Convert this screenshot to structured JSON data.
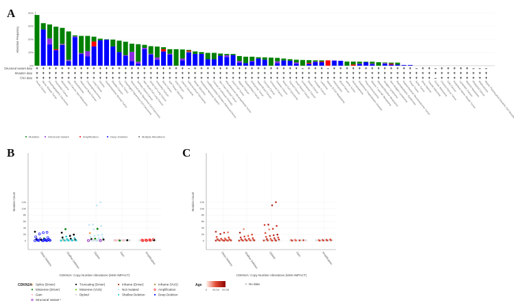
{
  "panels": {
    "a": "A",
    "b": "B",
    "c": "C"
  },
  "colors": {
    "mutation": "#008000",
    "structural_variant": "#8a2be2",
    "amplification": "#ff0000",
    "deep_deletion": "#0000ff",
    "multiple": "#666666"
  },
  "chart_data": [
    {
      "id": "A",
      "type": "bar",
      "stacked": true,
      "ylabel": "Alteration Frequency",
      "ylim": [
        0,
        40
      ],
      "yticks": [
        "0%",
        "10%",
        "20%",
        "30%",
        "40%"
      ],
      "row_labels": [
        "Structural variant data",
        "Mutation data",
        "CNA data"
      ],
      "legend": [
        "Mutation",
        "Structural Variant",
        "Amplification",
        "Deep Deletion",
        "Multiple Alterations"
      ],
      "legend_position": "bottom-left",
      "categories": [
        "Penile Cancer",
        "Nerve Sheath Tumor",
        "Esophagogastric Carcinoma",
        "Pancreatic Cancer",
        "Melanoma",
        "Skin Cancer, Non-Melanoma",
        "Mesothelioma",
        "Head and Neck Cancer",
        "Cholangiocarcinoma",
        "Lung Cancer",
        "Glioma",
        "Gastrointestinal Stromal Tumor",
        "Bladder Cancer",
        "Thymic Tumor",
        "Esophageal Squamous Cell Carcinoma",
        "Head and Neck Squamous Cell Carcinoma",
        "Salivary Gland Cancer",
        "Non-Small Cell Lung Cancer",
        "Small Cell Lung Cancer",
        "Ampullary Cancer",
        "Bone Cancer",
        "Soft Tissue Sarcoma",
        "Anal Cancer",
        "Uterine Sarcoma",
        "Adrenocortical Carcinoma",
        "Breast Sarcoma",
        "Peripheral Nervous System",
        "Undifferentiated Stomach Adenocarcinoma",
        "Cancer of Unknown Primary",
        "Sex Cord Stromal Tumor",
        "Miscellaneous Neuroepithelial Tumor",
        "Germ Cell Tumor",
        "Vaginal Cancer",
        "Hepatobiliary Cancer",
        "Embryonal Tumor",
        "Appendiceal Cancer",
        "Cervical Cancer",
        "Colorectal Cancer",
        "Ovarian Cancer",
        "Renal Cell Carcinoma",
        "Thyroid Cancer",
        "Small Bowel Cancer",
        "Endometrial Cancer",
        "Breast Cancer",
        "Prostate Cancer",
        "Leukemia",
        "Mature B-Cell Neoplasms",
        "Histiocytosis",
        "Blood Cancer",
        "Wilms Tumor",
        "Retinoblastoma",
        "Gestational Trophoblastic Disease",
        "Pheochromocytoma",
        "Mature T and NK Neoplasms",
        "Myeloproliferative Neoplasms",
        "Hodgkin Lymphoma",
        "Non-Hodgkin Lymphoma",
        "Myelodysplastic Syndromes",
        "Gastrointestinal Neuroendocrine Tumor",
        "Pineal Tumor",
        "Sellar Tumor",
        "Bone Marrow",
        "Tubular Adenoma",
        "Ocular Melanoma",
        "Choroid Plexus Tumor",
        "CNS Cancer",
        "Peripheral Nerve Sheath Tumor",
        "Lymphatic Cancer",
        "Myeloid Neoplasm",
        "Rhabdoid Cancer",
        "Mastocytosis",
        "Blastic Plasmacytoid Dendritic Cell Neoplasm"
      ],
      "series": [
        {
          "name": "Deep Deletion",
          "values": [
            0,
            27.5,
            16.2,
            11.8,
            15.6,
            3.5,
            21.7,
            8.8,
            7,
            14.6,
            19.3,
            19.7,
            14.6,
            10.3,
            7.5,
            3.5,
            1.5,
            12.5,
            8.5,
            4.5,
            10.8,
            8.5,
            0,
            4,
            10,
            8.9,
            8.9,
            4.9,
            4.9,
            7.5,
            6.6,
            8,
            2.3,
            1.9,
            3.1,
            5.4,
            4.5,
            0,
            1.9,
            4,
            3.7,
            1.4,
            0,
            1.4,
            2.6,
            2.6,
            0,
            3.8,
            3.7,
            0,
            0,
            1.2,
            2.6,
            1,
            0,
            1.4,
            0.8,
            0.8,
            0.5,
            0.5,
            0,
            0,
            0,
            0,
            0,
            0,
            0,
            0,
            0,
            0,
            0,
            0
          ]
        },
        {
          "name": "Multiple Alterations",
          "values": [
            0,
            0,
            0,
            0,
            0.6,
            0.5,
            0,
            0,
            0,
            0,
            0,
            0,
            0,
            0,
            0,
            0,
            0,
            0,
            0,
            0,
            0,
            0,
            0,
            0,
            0.8,
            0,
            0,
            0,
            0,
            0,
            0,
            0,
            0,
            0,
            0,
            0,
            0,
            0,
            0,
            0,
            0,
            0,
            0,
            0,
            0,
            0,
            0,
            0,
            0,
            0,
            0,
            0,
            0,
            0,
            0,
            0,
            0,
            0,
            0,
            0,
            0,
            0,
            0,
            0,
            0,
            0,
            0,
            0,
            0,
            0,
            0,
            0
          ]
        },
        {
          "name": "Structural Variant",
          "values": [
            0,
            0,
            4.5,
            0,
            0.4,
            0.5,
            0.5,
            0.7,
            4,
            0,
            0,
            0,
            0,
            0,
            0.5,
            7,
            1.5,
            1,
            0.5,
            1.7,
            0,
            0.5,
            0,
            1.4,
            0,
            0,
            0,
            0,
            0,
            0,
            1.4,
            0,
            1.2,
            0,
            0.5,
            0,
            0,
            0,
            1.4,
            0,
            0,
            1,
            0,
            0,
            0.5,
            0,
            0,
            0.2,
            0,
            0,
            0,
            0.3,
            0,
            0.5,
            0,
            0.5,
            0,
            0,
            0,
            0,
            0,
            0,
            0,
            0,
            0,
            0,
            0,
            0,
            0,
            0,
            0,
            0
          ]
        },
        {
          "name": "Amplification",
          "values": [
            0,
            0,
            0,
            0.7,
            0,
            0,
            0,
            0,
            0,
            3.8,
            0,
            0,
            0,
            0,
            0,
            0,
            0,
            0,
            0,
            0,
            1.7,
            0,
            0,
            0,
            0.7,
            0,
            0,
            0,
            0,
            0,
            0,
            0,
            0,
            0,
            0,
            0,
            0,
            0,
            0,
            0,
            0,
            0,
            0,
            0.7,
            0,
            0.5,
            4,
            0,
            0,
            0,
            0.9,
            0,
            0,
            0,
            0,
            0,
            0.7,
            0,
            0,
            0,
            0,
            0,
            0,
            0,
            0,
            0,
            0,
            0,
            0,
            0,
            0,
            0
          ]
        },
        {
          "name": "Mutation",
          "values": [
            38.5,
            4.8,
            10.6,
            17.1,
            12.1,
            21.5,
            0.8,
            13.1,
            11.6,
            3.6,
            1.2,
            0.3,
            5.2,
            8.7,
            10.2,
            6.2,
            13.3,
            2.3,
            5.8,
            8.3,
            1.5,
            3.5,
            12.5,
            6.9,
            0.5,
            1.9,
            1.4,
            4.8,
            4.8,
            1.7,
            0.9,
            0.9,
            3.8,
            4.9,
            3.2,
            1,
            1.8,
            6.1,
            2.6,
            1.4,
            1.2,
            2.1,
            4.3,
            2.1,
            0.9,
            0.9,
            0,
            0,
            0,
            3.1,
            2.2,
            1.5,
            0.4,
            1.5,
            2.6,
            0.5,
            0.8,
            1.5,
            0,
            0,
            0,
            0,
            0,
            0,
            0,
            0,
            0,
            0,
            0,
            0,
            0,
            0
          ]
        }
      ],
      "profiled": {
        "structural_variant": "++++++++++++++++++++++++-+++++++++++++++++-+++-+++++++++++++-++-+++++---",
        "mutation": "++++++++++++++++++++++++++++++++++++++++++++++++++++++++++++++++++++++++",
        "cna": "+++++++++++++++++++++++++++++++++++++++++++++++++++++++++++++++-++++++++"
      }
    },
    {
      "id": "B",
      "type": "scatter",
      "xlabel": "CDKN2A: Copy Number Alterations (MSK-IMPACT)",
      "ylabel": "Mutation Count",
      "ylim": [
        -1500,
        13000
      ],
      "yticks": [
        0,
        2000,
        4000,
        6000,
        8000,
        10000,
        12000
      ],
      "ytick_labels": [
        "0",
        "2k",
        "4k",
        "6k",
        "8k",
        "10k",
        "12k"
      ],
      "categories": [
        "Deep Deletion",
        "Shallow Deletion",
        "Diploid",
        "Gain",
        "Amplification"
      ],
      "points": [
        [
          0,
          2800,
          "tr"
        ],
        [
          0,
          2600,
          "dd"
        ],
        [
          0,
          2500,
          "dd"
        ],
        [
          0,
          2100,
          "dd"
        ],
        [
          0,
          1200,
          "dd"
        ],
        [
          0,
          1000,
          "dd"
        ],
        [
          0,
          700,
          "md"
        ],
        [
          0,
          600,
          "dd"
        ],
        [
          0,
          500,
          "tr"
        ],
        [
          0,
          450,
          "dd"
        ],
        [
          0,
          400,
          "dd"
        ],
        [
          0,
          350,
          "tr"
        ],
        [
          0,
          300,
          "dd"
        ],
        [
          0,
          250,
          "dd"
        ],
        [
          0,
          200,
          "dd"
        ],
        [
          0,
          150,
          "tr"
        ],
        [
          0,
          120,
          "dd"
        ],
        [
          0,
          100,
          "dd"
        ],
        [
          0,
          80,
          "dd"
        ],
        [
          0,
          60,
          "dd"
        ],
        [
          0,
          40,
          "dd"
        ],
        [
          0,
          30,
          "dd"
        ],
        [
          0,
          20,
          "dd"
        ],
        [
          0,
          10,
          "dd"
        ],
        [
          1,
          3600,
          "md"
        ],
        [
          1,
          2500,
          "tr"
        ],
        [
          1,
          1900,
          "tr"
        ],
        [
          1,
          1500,
          "tr"
        ],
        [
          1,
          1300,
          "sd"
        ],
        [
          1,
          1000,
          "tr"
        ],
        [
          1,
          800,
          "sd"
        ],
        [
          1,
          600,
          "tr"
        ],
        [
          1,
          500,
          "sd"
        ],
        [
          1,
          400,
          "sd"
        ],
        [
          1,
          300,
          "tr"
        ],
        [
          1,
          250,
          "sd"
        ],
        [
          1,
          200,
          "sd"
        ],
        [
          1,
          150,
          "sp"
        ],
        [
          1,
          100,
          "sd"
        ],
        [
          1,
          80,
          "sd"
        ],
        [
          1,
          50,
          "sd"
        ],
        [
          1,
          30,
          "sd"
        ],
        [
          1,
          10,
          "sd"
        ],
        [
          2,
          12000,
          "nm"
        ],
        [
          2,
          11000,
          "nm"
        ],
        [
          2,
          5000,
          "nm"
        ],
        [
          2,
          4900,
          "nm"
        ],
        [
          2,
          4600,
          "nm"
        ],
        [
          2,
          3700,
          "md"
        ],
        [
          2,
          3500,
          "nm"
        ],
        [
          2,
          2400,
          "sp"
        ],
        [
          2,
          1900,
          "nm"
        ],
        [
          2,
          1700,
          "nm"
        ],
        [
          2,
          1500,
          "nm"
        ],
        [
          2,
          1200,
          "nm"
        ],
        [
          2,
          1000,
          "nm"
        ],
        [
          2,
          800,
          "nm"
        ],
        [
          2,
          600,
          "md"
        ],
        [
          2,
          500,
          "tr"
        ],
        [
          2,
          400,
          "tr"
        ],
        [
          2,
          300,
          "nm"
        ],
        [
          2,
          200,
          "nm"
        ],
        [
          2,
          100,
          "nm"
        ],
        [
          2,
          50,
          "sv"
        ],
        [
          2,
          30,
          "sv"
        ],
        [
          2,
          10,
          "nm"
        ],
        [
          3,
          300,
          "ga"
        ],
        [
          3,
          200,
          "ga"
        ],
        [
          3,
          150,
          "tr"
        ],
        [
          3,
          100,
          "ga"
        ],
        [
          3,
          50,
          "md"
        ],
        [
          3,
          20,
          "ga"
        ],
        [
          4,
          400,
          "am"
        ],
        [
          4,
          300,
          "am"
        ],
        [
          4,
          250,
          "am"
        ],
        [
          4,
          200,
          "am"
        ],
        [
          4,
          150,
          "tr"
        ],
        [
          4,
          100,
          "am"
        ],
        [
          4,
          50,
          "am"
        ],
        [
          4,
          20,
          "am"
        ]
      ],
      "legend_title": "CDKN2A",
      "legend": [
        {
          "code": "sp",
          "label": "Splice (Driver)",
          "color": "#f4a460"
        },
        {
          "code": "tr",
          "label": "Truncating (Driver)",
          "color": "#000000"
        },
        {
          "code": "if",
          "label": "Inframe (Driver)",
          "color": "#993404"
        },
        {
          "code": "iv",
          "label": "Inframe (VUS)",
          "color": "#a68028"
        },
        {
          "code": "md",
          "label": "Missense (Driver)",
          "color": "#008000"
        },
        {
          "code": "mv",
          "label": "Missense (VUS)",
          "color": "#53d400"
        },
        {
          "code": "nm",
          "label": "Not mutated",
          "color": "#c4e5f5"
        },
        {
          "code": "am",
          "label": "Amplification",
          "color": "#ff0000"
        },
        {
          "code": "ga",
          "label": "Gain",
          "color": "#ffb6c1"
        },
        {
          "code": "di",
          "label": "Diploid",
          "color": "#d3d3d3"
        },
        {
          "code": "sd",
          "label": "Shallow Deletion",
          "color": "#2aced4"
        },
        {
          "code": "dd",
          "label": "Deep Deletion",
          "color": "#0000ff"
        },
        {
          "code": "sv",
          "label": "Structural Variant ¹",
          "color": "#8b00c9"
        }
      ]
    },
    {
      "id": "C",
      "type": "scatter",
      "xlabel": "CDKN2A: Copy Number Alterations (MSK-IMPACT)",
      "ylabel": "Mutation Count",
      "ylim": [
        -1500,
        13000
      ],
      "color_by": "Age",
      "color_scale": {
        "min": 0,
        "mid": 49.54,
        "max": 99.08,
        "labels": [
          "0",
          "49.54",
          "99.08"
        ],
        "low": "#fff5f0",
        "high": "#8b0000"
      },
      "no_data_label": "No data",
      "points_age": [
        72,
        40,
        65,
        80,
        55,
        60,
        45,
        70,
        62,
        58,
        66,
        50,
        75,
        68,
        52,
        61,
        59,
        64,
        71,
        57,
        63,
        69,
        54,
        67,
        30,
        78,
        55,
        48,
        62,
        70,
        58,
        66,
        60,
        72,
        64,
        50,
        57,
        61,
        69,
        53,
        65,
        59,
        62,
        68,
        75,
        82,
        60,
        70,
        64,
        35,
        55,
        80,
        73,
        66,
        58,
        62,
        71,
        45,
        77,
        69,
        60,
        52,
        66,
        63,
        70,
        58,
        40,
        55,
        62,
        70,
        48,
        65,
        58,
        66,
        72,
        50,
        61,
        69,
        57,
        63
      ]
    }
  ]
}
